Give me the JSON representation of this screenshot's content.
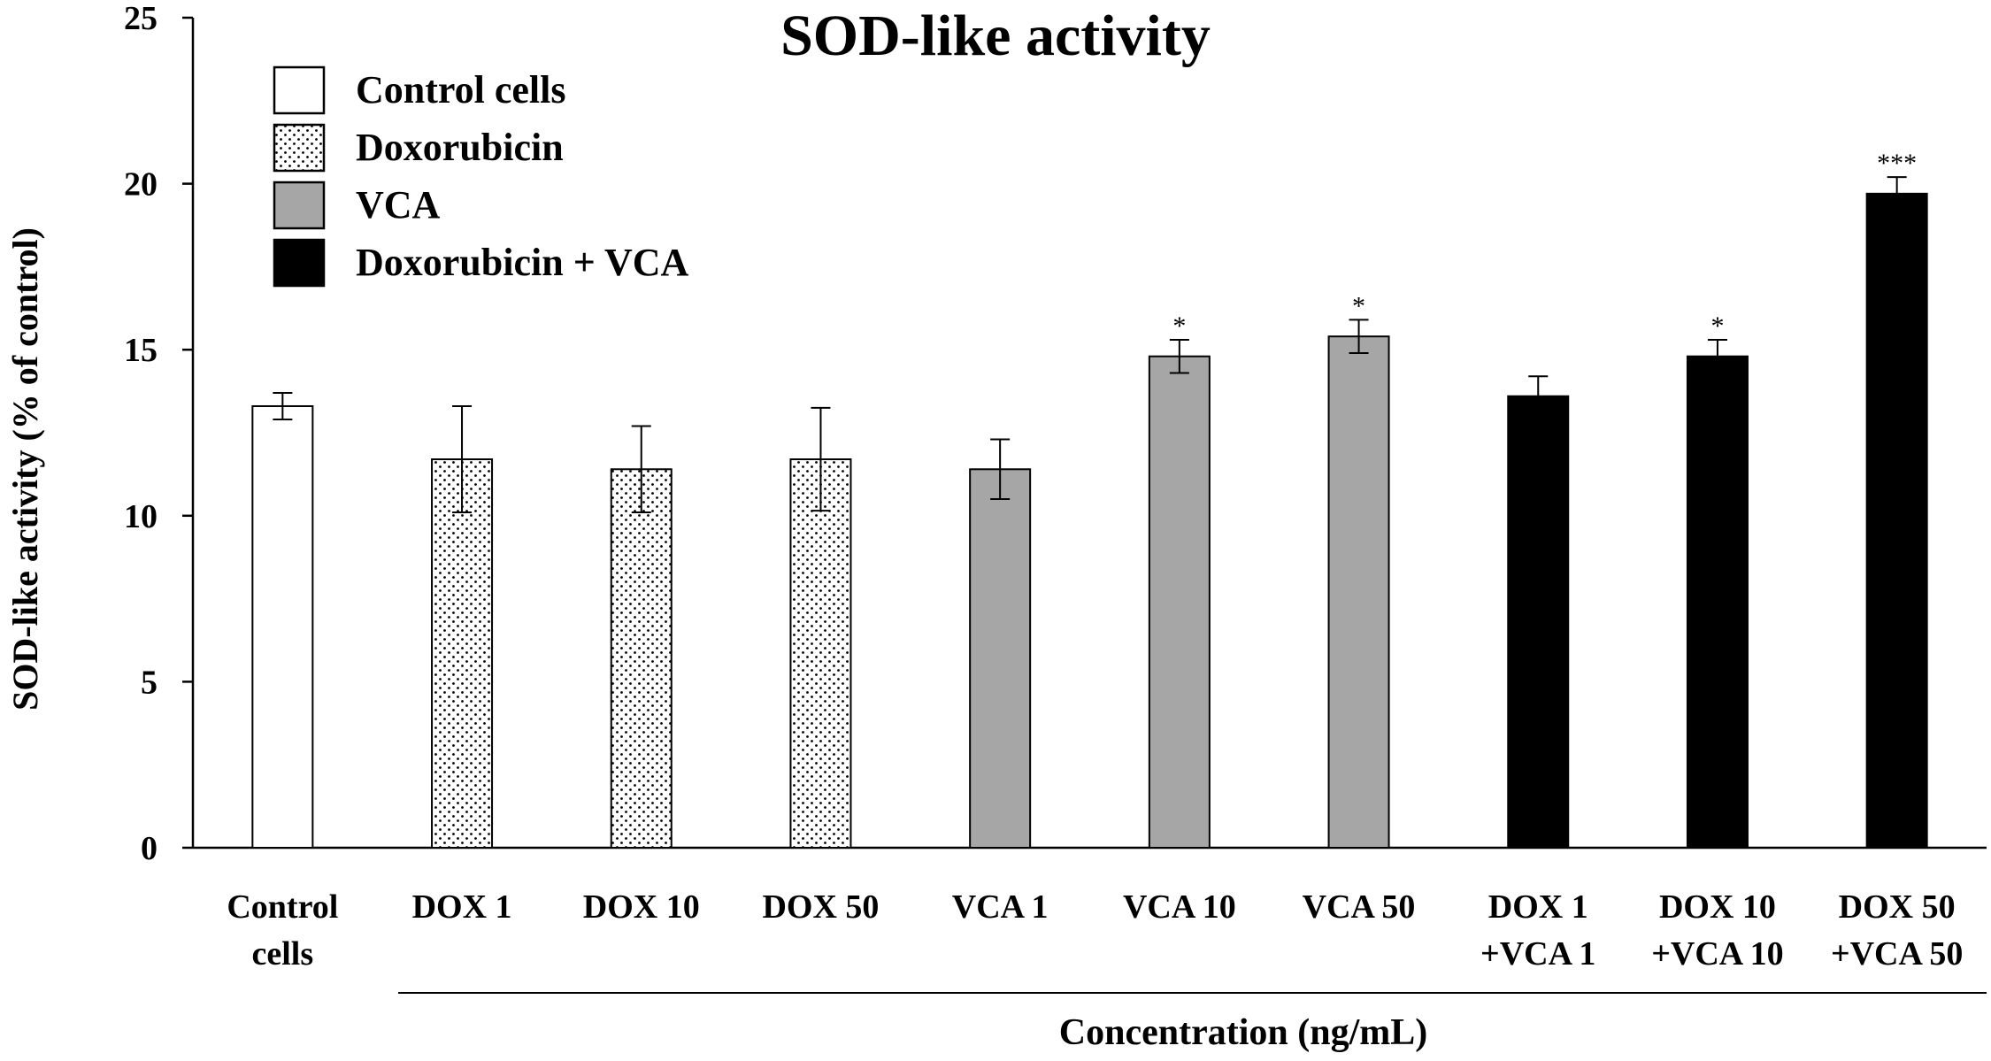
{
  "chart_data": {
    "type": "bar",
    "title": "SOD-like activity",
    "xlabel": "Concentration (ng/mL)",
    "ylabel": "SOD-like activity (% of control)",
    "ylim": [
      0,
      25
    ],
    "yticks": [
      "0",
      "5",
      "10",
      "15",
      "20",
      "25"
    ],
    "categories": [
      {
        "line1": "Control",
        "line2": "cells"
      },
      {
        "line1": "DOX 1",
        "line2": ""
      },
      {
        "line1": "DOX 10",
        "line2": ""
      },
      {
        "line1": "DOX 50",
        "line2": ""
      },
      {
        "line1": "VCA 1",
        "line2": ""
      },
      {
        "line1": "VCA 10",
        "line2": ""
      },
      {
        "line1": "VCA 50",
        "line2": ""
      },
      {
        "line1": "DOX 1",
        "line2": "+VCA 1"
      },
      {
        "line1": "DOX 10",
        "line2": "+VCA 10"
      },
      {
        "line1": "DOX 50",
        "line2": "+VCA 50"
      }
    ],
    "values": [
      13.3,
      11.7,
      11.4,
      11.7,
      11.4,
      14.8,
      15.4,
      13.6,
      14.8,
      19.7
    ],
    "errors": [
      0.4,
      1.6,
      1.3,
      1.55,
      0.9,
      0.5,
      0.5,
      0.6,
      0.5,
      0.5
    ],
    "groups": [
      0,
      1,
      1,
      1,
      2,
      2,
      2,
      3,
      3,
      3
    ],
    "significance": [
      "",
      "",
      "",
      "",
      "",
      "*",
      "*",
      "",
      "*",
      "***"
    ],
    "legend": [
      {
        "label": "Control cells",
        "style": "white"
      },
      {
        "label": "Doxorubicin",
        "style": "dotted"
      },
      {
        "label": "VCA",
        "style": "gray"
      },
      {
        "label": "Doxorubicin + VCA",
        "style": "black"
      }
    ],
    "legend_position": "top-left",
    "colors": {
      "white": "#ffffff",
      "dotted": "#ffffff",
      "gray": "#a6a6a6",
      "black": "#000000",
      "stroke": "#000000"
    },
    "grid": false
  }
}
